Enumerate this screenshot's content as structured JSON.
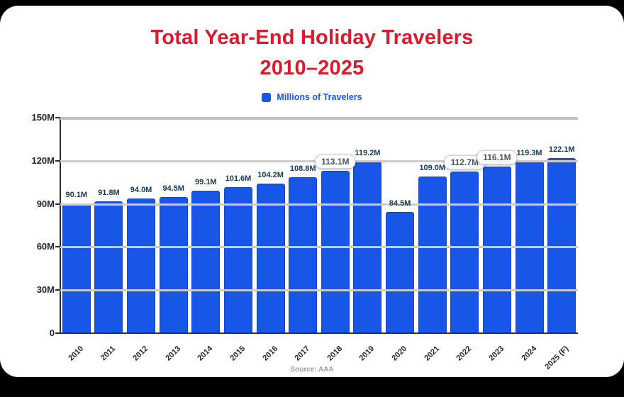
{
  "title": {
    "line1": "Total Year-End Holiday Travelers",
    "line2": "2010–2025"
  },
  "legend": {
    "label": "Millions of Travelers"
  },
  "source": "Source: AAA",
  "colors": {
    "title_red": "#e0182d",
    "bar_blue": "#1856e8",
    "legend_blue": "#1856e8",
    "value_label_navy": "#16394f",
    "gridline_gray": "#cbcbcf",
    "top_gridline_gray": "#c2c2c6",
    "baseline_dark": "#36322f"
  },
  "chart_data": {
    "type": "bar",
    "title": "Total Year-End Holiday Travelers 2010–2025",
    "categories": [
      "2010",
      "2011",
      "2012",
      "2013",
      "2014",
      "2015",
      "2016",
      "2017",
      "2018",
      "2019",
      "2020",
      "2021",
      "2022",
      "2023",
      "2024",
      "2025 (F)"
    ],
    "values": [
      90.1,
      91.8,
      94.0,
      94.5,
      99.1,
      101.6,
      104.2,
      108.8,
      113.1,
      119.2,
      84.5,
      109.0,
      112.7,
      116.1,
      119.3,
      122.1
    ],
    "value_labels": [
      "90.1M",
      "91.8M",
      "94.0M",
      "94.5M",
      "99.1M",
      "101.6M",
      "104.2M",
      "108.8M",
      "113.1M",
      "119.2M",
      "84.5M",
      "109.0M",
      "112.7M",
      "116.1M",
      "119.3M",
      "122.1M"
    ],
    "highlighted_label_indices": [
      8,
      12,
      13
    ],
    "xlabel": "",
    "ylabel": "Millions of Travelers",
    "ylim": [
      0,
      150
    ],
    "ytick_labels": [
      "150M",
      "120M",
      "90M",
      "60M",
      "30M",
      "0"
    ],
    "grid": true,
    "legend_entries": [
      "Millions of Travelers"
    ],
    "legend_position": "top"
  }
}
